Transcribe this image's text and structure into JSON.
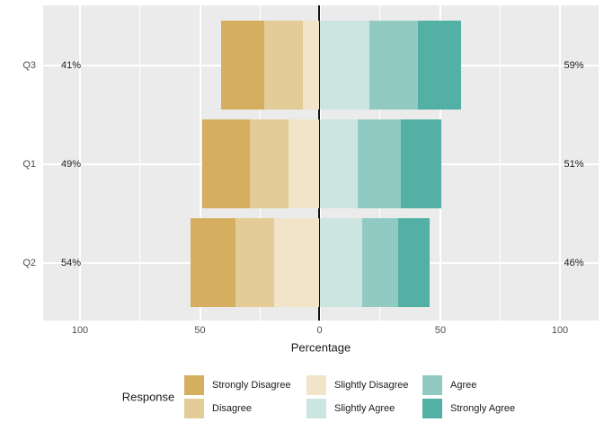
{
  "chart_data": {
    "type": "bar",
    "subtype": "diverging-stacked-likert",
    "title": "",
    "xlabel": "Percentage",
    "x_ticks": [
      "100",
      "50",
      "0",
      "50",
      "100"
    ],
    "x_tick_values": [
      -100,
      -50,
      0,
      50,
      100
    ],
    "xlim": [
      -115,
      116
    ],
    "grid": "on",
    "panel_background": "#ebebeb",
    "zero_line_color": "#111111",
    "levels": [
      {
        "name": "Strongly Disagree",
        "color": "#d6ae60",
        "side": "left"
      },
      {
        "name": "Disagree",
        "color": "#e4cc98",
        "side": "left"
      },
      {
        "name": "Slightly Disagree",
        "color": "#f1e4c8",
        "side": "left"
      },
      {
        "name": "Slightly Agree",
        "color": "#cde5e1",
        "side": "right"
      },
      {
        "name": "Agree",
        "color": "#90cac2",
        "side": "right"
      },
      {
        "name": "Strongly Agree",
        "color": "#52b0a4",
        "side": "right"
      }
    ],
    "rows": [
      {
        "category": "Q3",
        "left_total_label": "41%",
        "right_total_label": "59%",
        "values": {
          "Strongly Disagree": 18,
          "Disagree": 16,
          "Slightly Disagree": 7,
          "Slightly Agree": 21,
          "Agree": 20,
          "Strongly Agree": 18
        }
      },
      {
        "category": "Q1",
        "left_total_label": "49%",
        "right_total_label": "51%",
        "values": {
          "Strongly Disagree": 20,
          "Disagree": 16,
          "Slightly Disagree": 13,
          "Slightly Agree": 16,
          "Agree": 18,
          "Strongly Agree": 17
        }
      },
      {
        "category": "Q2",
        "left_total_label": "54%",
        "right_total_label": "46%",
        "values": {
          "Strongly Disagree": 19,
          "Disagree": 16,
          "Slightly Disagree": 19,
          "Slightly Agree": 18,
          "Agree": 15,
          "Strongly Agree": 13
        }
      }
    ],
    "legend": {
      "title": "Response",
      "position": "bottom",
      "columns": [
        [
          "Strongly Disagree",
          "Disagree"
        ],
        [
          "Slightly Disagree",
          "Slightly Agree"
        ],
        [
          "Agree",
          "Strongly Agree"
        ]
      ]
    }
  }
}
